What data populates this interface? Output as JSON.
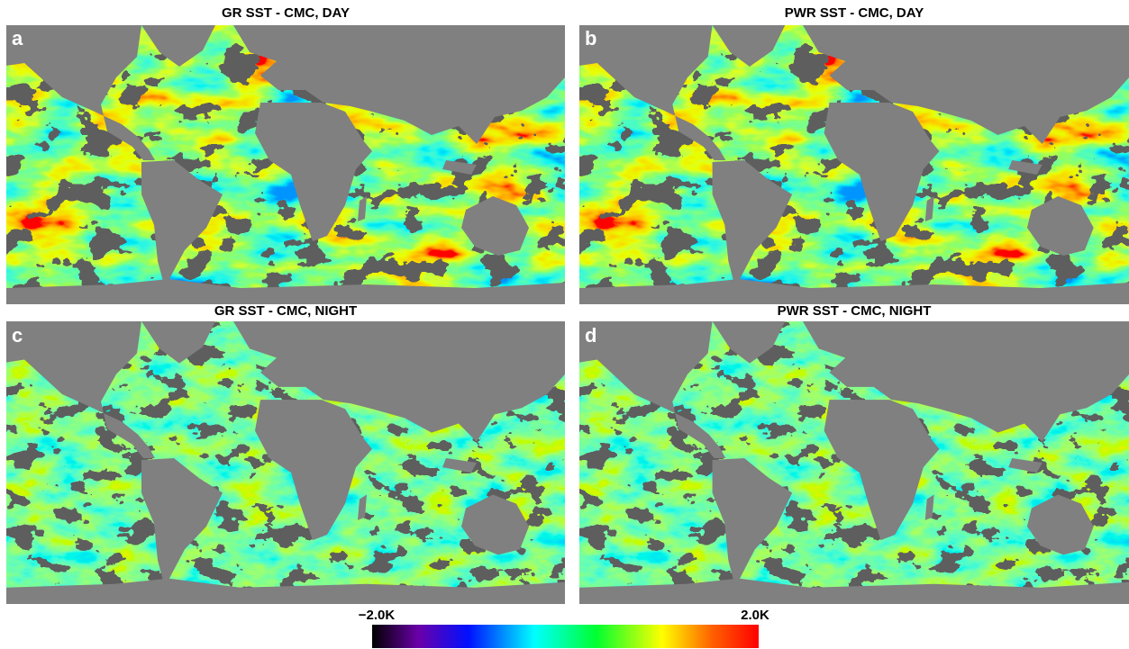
{
  "panels": [
    {
      "label": "a",
      "title": "GR SST - CMC, DAY"
    },
    {
      "label": "b",
      "title": "PWR SST - CMC, DAY"
    },
    {
      "label": "c",
      "title": "GR SST - CMC, NIGHT"
    },
    {
      "label": "d",
      "title": "PWR SST - CMC, NIGHT"
    }
  ],
  "colorbar": {
    "min_label": "−2.0K",
    "max_label": "2.0K"
  }
}
